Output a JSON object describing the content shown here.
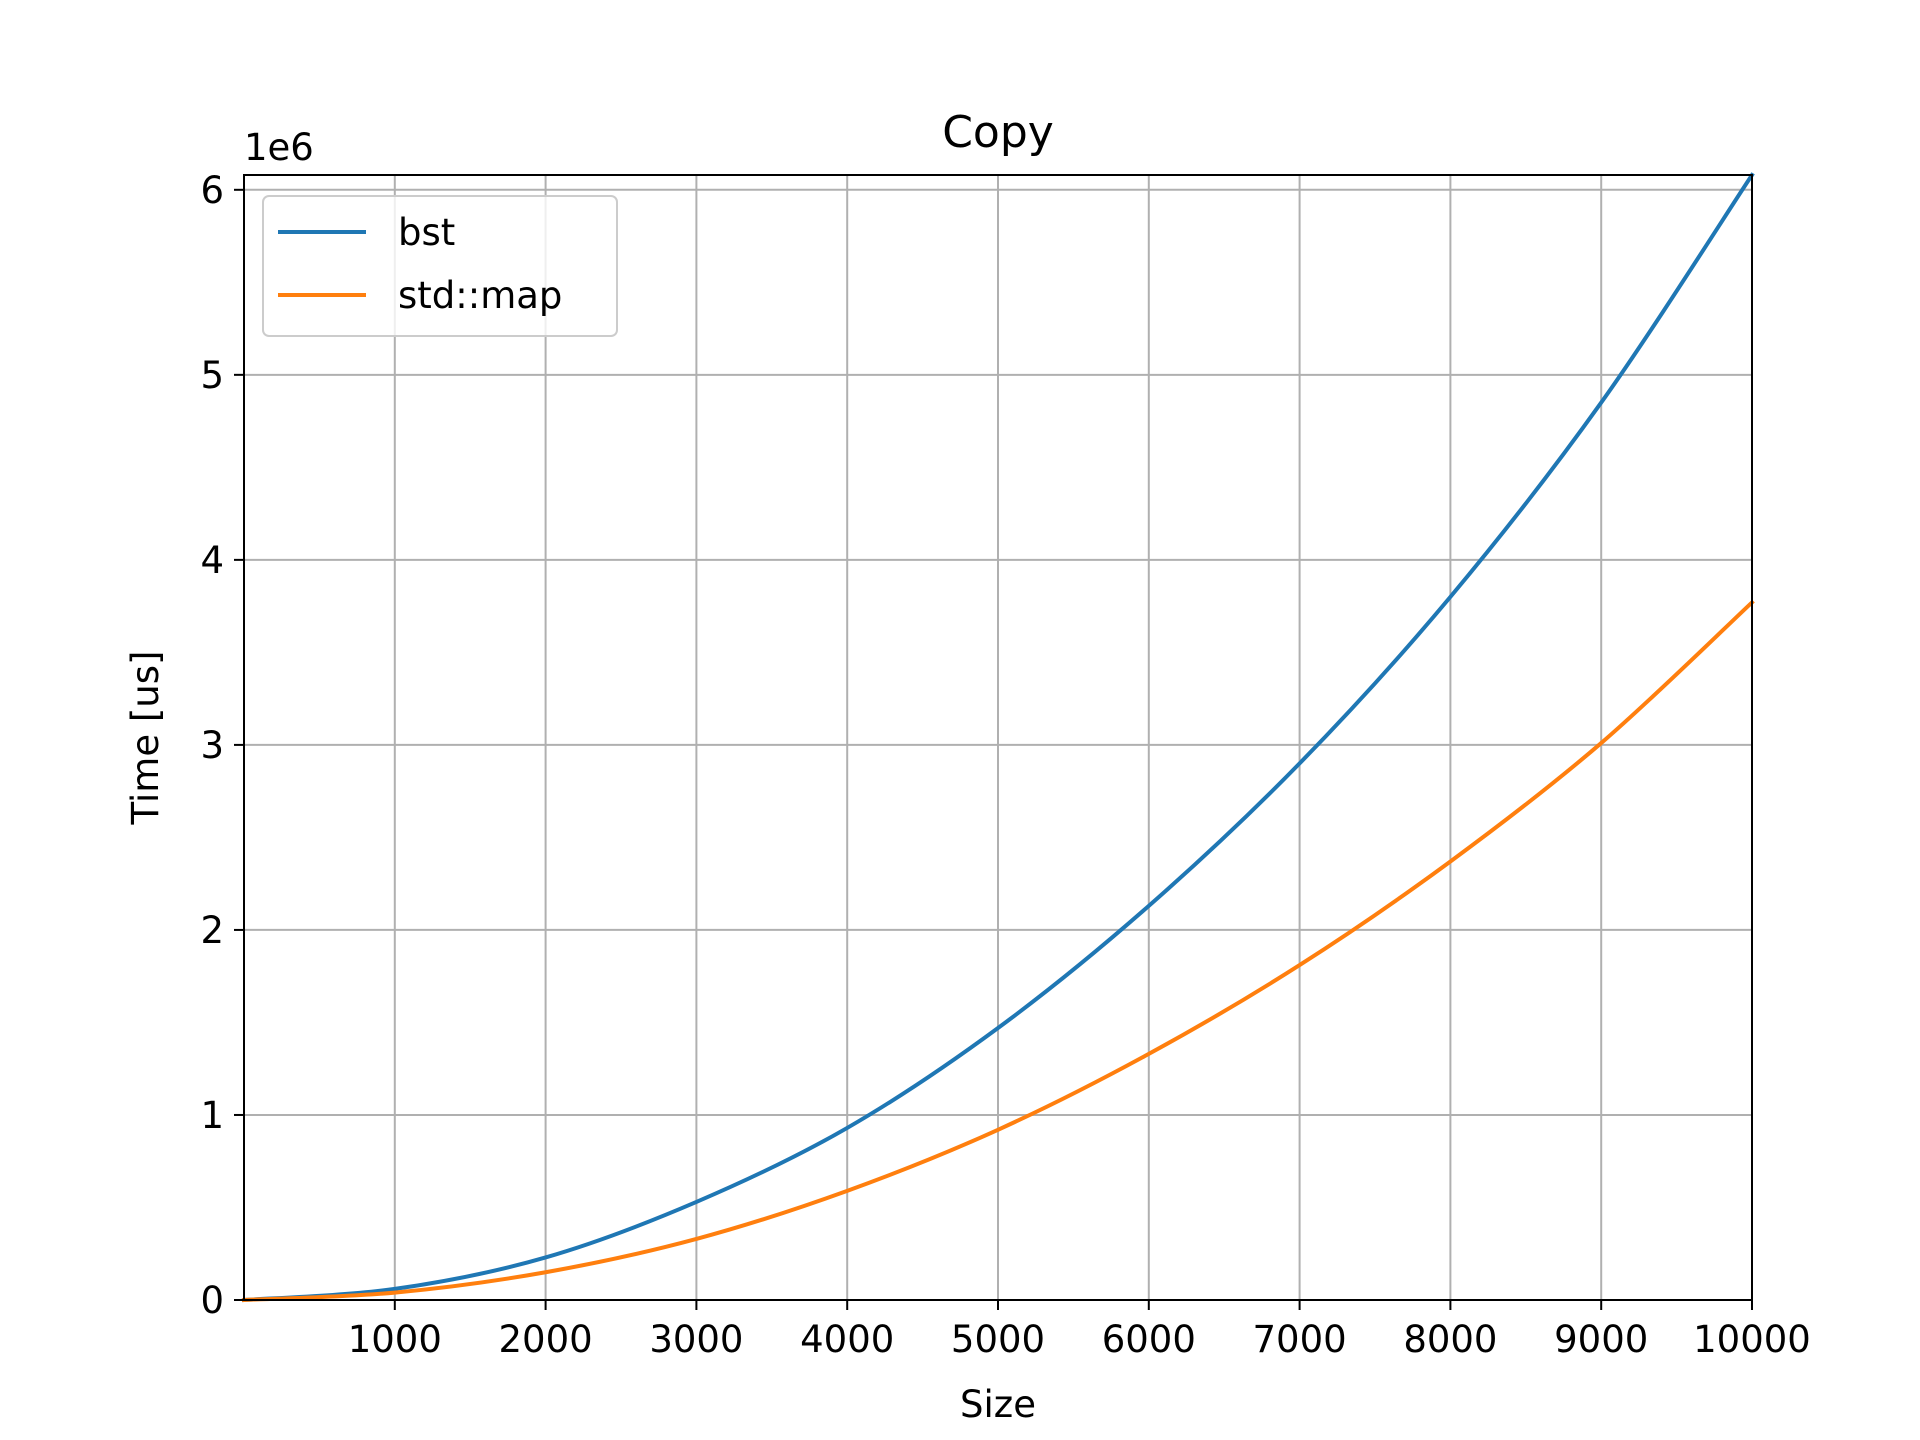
{
  "chart_data": {
    "type": "line",
    "title": "Copy",
    "xlabel": "Size",
    "ylabel": "Time [us]",
    "y_offset_label": "1e6",
    "xlim": [
      0,
      10000
    ],
    "ylim": [
      0,
      6.08
    ],
    "xticks": [
      1000,
      2000,
      3000,
      4000,
      5000,
      6000,
      7000,
      8000,
      9000,
      10000
    ],
    "xtick_labels": [
      "1000",
      "2000",
      "3000",
      "4000",
      "5000",
      "6000",
      "7000",
      "8000",
      "9000",
      "10000"
    ],
    "yticks": [
      0,
      1,
      2,
      3,
      4,
      5,
      6
    ],
    "ytick_labels": [
      "0",
      "1",
      "2",
      "3",
      "4",
      "5",
      "6"
    ],
    "grid": true,
    "legend_position": "upper-left",
    "x": [
      0,
      1000,
      2000,
      3000,
      4000,
      5000,
      6000,
      7000,
      8000,
      9000,
      10000
    ],
    "series": [
      {
        "name": "bst",
        "color": "#1f77b4",
        "values": [
          0,
          0.06,
          0.23,
          0.53,
          0.93,
          1.47,
          2.13,
          2.9,
          3.8,
          4.85,
          6.08
        ]
      },
      {
        "name": "std::map",
        "color": "#ff7f0e",
        "values": [
          0,
          0.04,
          0.15,
          0.33,
          0.59,
          0.92,
          1.33,
          1.81,
          2.37,
          3.01,
          3.77
        ]
      }
    ]
  },
  "colors": {
    "grid": "#b0b0b0",
    "axes": "#000000",
    "background": "#ffffff"
  }
}
